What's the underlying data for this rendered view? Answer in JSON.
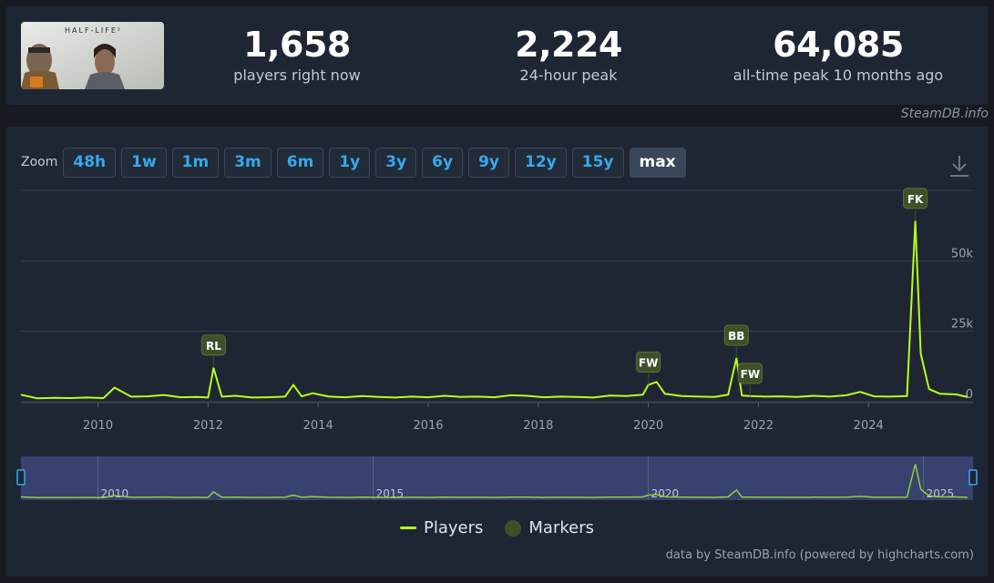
{
  "stats": {
    "thumbnail_alt": "HALF-LIFE²",
    "current": {
      "value": "1,658",
      "label": "players right now"
    },
    "peak_24h": {
      "value": "2,224",
      "label": "24-hour peak"
    },
    "all_time": {
      "value": "64,085",
      "label": "all-time peak 10 months ago"
    }
  },
  "watermark": "SteamDB.info",
  "zoom": {
    "label": "Zoom",
    "buttons": [
      "48h",
      "1w",
      "1m",
      "3m",
      "6m",
      "1y",
      "3y",
      "6y",
      "9y",
      "12y",
      "15y",
      "max"
    ],
    "active": "max"
  },
  "legend": {
    "players": "Players",
    "markers": "Markers"
  },
  "credits": "data by SteamDB.info (powered by highcharts.com)",
  "colors": {
    "line": "#b6ff1f",
    "marker": "#3e5028",
    "navigator_bg": "#39416f",
    "zoom_text": "#35a9ee"
  },
  "chart_data": {
    "type": "line",
    "series": [
      {
        "name": "Players",
        "x": [
          2008.6,
          2008.9,
          2009.2,
          2009.5,
          2009.8,
          2010.1,
          2010.3,
          2010.6,
          2010.9,
          2011.2,
          2011.5,
          2011.8,
          2012.0,
          2012.1,
          2012.25,
          2012.5,
          2012.8,
          2013.1,
          2013.4,
          2013.55,
          2013.7,
          2013.9,
          2014.2,
          2014.5,
          2014.8,
          2015.1,
          2015.4,
          2015.7,
          2016.0,
          2016.3,
          2016.6,
          2016.9,
          2017.2,
          2017.5,
          2017.8,
          2018.1,
          2018.4,
          2018.7,
          2019.0,
          2019.3,
          2019.6,
          2019.9,
          2020.0,
          2020.15,
          2020.3,
          2020.6,
          2020.9,
          2021.2,
          2021.45,
          2021.6,
          2021.7,
          2021.85,
          2022.1,
          2022.4,
          2022.7,
          2023.0,
          2023.3,
          2023.6,
          2023.85,
          2024.1,
          2024.4,
          2024.7,
          2024.85,
          2024.95,
          2025.1,
          2025.3,
          2025.6,
          2025.8
        ],
        "values": [
          2500,
          1200,
          1400,
          1300,
          1500,
          1300,
          5000,
          1800,
          1900,
          2400,
          1600,
          1700,
          1500,
          12000,
          1800,
          2100,
          1500,
          1600,
          1800,
          6000,
          1900,
          3000,
          1800,
          1600,
          2000,
          1700,
          1500,
          1800,
          1600,
          2100,
          1700,
          1800,
          1600,
          2300,
          2100,
          1600,
          1800,
          1700,
          1500,
          2200,
          2000,
          2500,
          6000,
          7000,
          2800,
          2000,
          1800,
          1700,
          2500,
          15500,
          2200,
          2000,
          1800,
          1900,
          1700,
          2100,
          1800,
          2300,
          3500,
          1900,
          1800,
          2000,
          64085,
          17000,
          4500,
          2800,
          2600,
          1658
        ]
      }
    ],
    "markers": [
      {
        "label": "RL",
        "x": 2012.1
      },
      {
        "label": "FW",
        "x": 2020.0
      },
      {
        "label": "BB",
        "x": 2021.6
      },
      {
        "label": "FW",
        "x": 2021.85
      },
      {
        "label": "FK",
        "x": 2024.85
      }
    ],
    "xlim": [
      2008.6,
      2025.9
    ],
    "ylim": [
      0,
      75000
    ],
    "x_ticks": [
      "2010",
      "2012",
      "2014",
      "2016",
      "2018",
      "2020",
      "2022",
      "2024"
    ],
    "y_ticks": [
      "0",
      "25k",
      "50k"
    ],
    "navigator_ticks": [
      "2010",
      "2015",
      "2020",
      "2025"
    ],
    "grid": true,
    "legend_position": "bottom-center"
  }
}
